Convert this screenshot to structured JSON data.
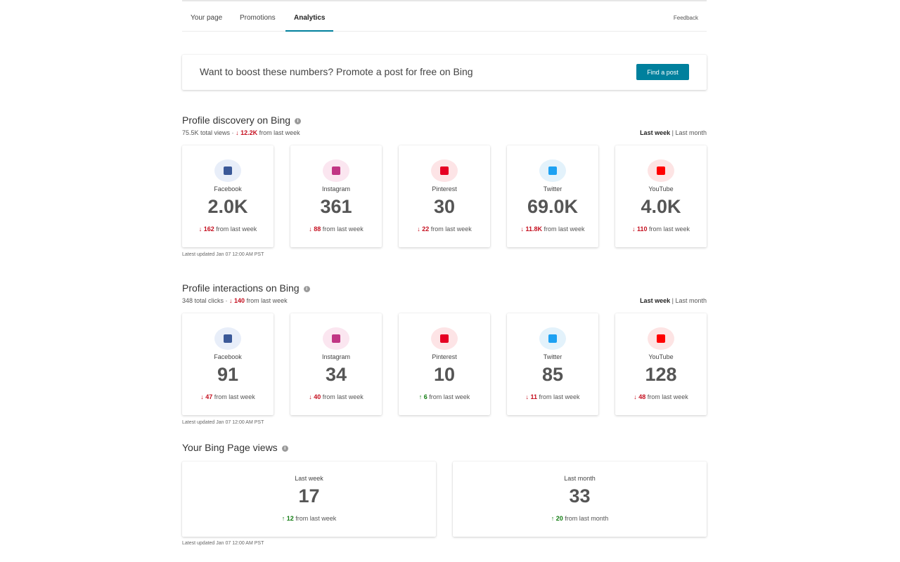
{
  "colors": {
    "accent": "#00809d",
    "down": "#c50f1f",
    "up": "#107c10",
    "facebook": "#3b5998",
    "instagram": "#c13584",
    "pinterest": "#e60023",
    "twitter": "#1da1f2",
    "youtube": "#ff0000"
  },
  "nav": {
    "tabs": [
      {
        "label": "Your page"
      },
      {
        "label": "Promotions"
      },
      {
        "label": "Analytics",
        "active": true
      }
    ],
    "feedback": "Feedback"
  },
  "promo": {
    "text": "Want to boost these numbers? Promote a post for free on Bing",
    "button": "Find a post"
  },
  "discovery": {
    "title": "Profile discovery on Bing",
    "summary_total": "75.5K total views ·",
    "summary_delta": "↓ 12.2K",
    "summary_suffix": "from last week",
    "period": {
      "last_week": "Last week",
      "sep": "|",
      "last_month": "Last month"
    },
    "cards": [
      {
        "name": "Facebook",
        "icon": "facebook-icon",
        "value": "2.0K",
        "delta": "↓ 162",
        "dir": "down",
        "suffix": "from last week"
      },
      {
        "name": "Instagram",
        "icon": "instagram-icon",
        "value": "361",
        "delta": "↓ 88",
        "dir": "down",
        "suffix": "from last week"
      },
      {
        "name": "Pinterest",
        "icon": "pinterest-icon",
        "value": "30",
        "delta": "↓ 22",
        "dir": "down",
        "suffix": "from last week"
      },
      {
        "name": "Twitter",
        "icon": "twitter-icon",
        "value": "69.0K",
        "delta": "↓ 11.8K",
        "dir": "down",
        "suffix": "from last week"
      },
      {
        "name": "YouTube",
        "icon": "youtube-icon",
        "value": "4.0K",
        "delta": "↓ 110",
        "dir": "down",
        "suffix": "from last week"
      }
    ],
    "updated": "Latest updated Jan 07 12:00 AM PST"
  },
  "interactions": {
    "title": "Profile interactions on Bing",
    "summary_total": "348 total clicks ·",
    "summary_delta": "↓ 140",
    "summary_suffix": "from last week",
    "period": {
      "last_week": "Last week",
      "sep": "|",
      "last_month": "Last month"
    },
    "cards": [
      {
        "name": "Facebook",
        "icon": "facebook-icon",
        "value": "91",
        "delta": "↓ 47",
        "dir": "down",
        "suffix": "from last week"
      },
      {
        "name": "Instagram",
        "icon": "instagram-icon",
        "value": "34",
        "delta": "↓ 40",
        "dir": "down",
        "suffix": "from last week"
      },
      {
        "name": "Pinterest",
        "icon": "pinterest-icon",
        "value": "10",
        "delta": "↑ 6",
        "dir": "up",
        "suffix": "from last week"
      },
      {
        "name": "Twitter",
        "icon": "twitter-icon",
        "value": "85",
        "delta": "↓ 11",
        "dir": "down",
        "suffix": "from last week"
      },
      {
        "name": "YouTube",
        "icon": "youtube-icon",
        "value": "128",
        "delta": "↓ 48",
        "dir": "down",
        "suffix": "from last week"
      }
    ],
    "updated": "Latest updated Jan 07 12:00 AM PST"
  },
  "page_views": {
    "title": "Your Bing Page views",
    "cards": [
      {
        "label": "Last week",
        "value": "17",
        "delta": "↑ 12",
        "dir": "up",
        "suffix": "from last week"
      },
      {
        "label": "Last month",
        "value": "33",
        "delta": "↑ 20",
        "dir": "up",
        "suffix": "from last month"
      }
    ],
    "updated": "Latest updated Jan 07 12:00 AM PST"
  }
}
